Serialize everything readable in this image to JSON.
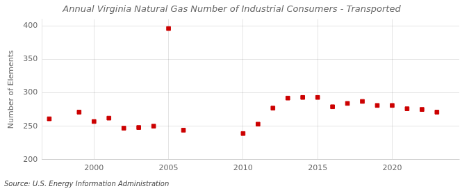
{
  "chart_data": {
    "type": "scatter",
    "title": "Annual Virginia Natural Gas Number of Industrial Consumers - Transported",
    "ylabel": "Number of Elements",
    "annotation": "Source: U.S. Energy Information Administration",
    "x": [
      1997,
      1999,
      2000,
      2001,
      2002,
      2003,
      2004,
      2005,
      2006,
      2010,
      2011,
      2012,
      2013,
      2014,
      2015,
      2016,
      2017,
      2018,
      2019,
      2020,
      2021,
      2022,
      2023
    ],
    "values": [
      261,
      271,
      257,
      262,
      247,
      248,
      250,
      396,
      244,
      239,
      253,
      277,
      292,
      293,
      293,
      279,
      284,
      287,
      281,
      281,
      276,
      275,
      271
    ],
    "color": "#cc0000",
    "marker": "square",
    "xlim": [
      1996.5,
      2024.5
    ],
    "xticks": [
      2000,
      2005,
      2010,
      2015,
      2020
    ],
    "ylim": [
      200,
      410
    ],
    "yticks": [
      200,
      250,
      300,
      350,
      400
    ],
    "grid": true
  }
}
